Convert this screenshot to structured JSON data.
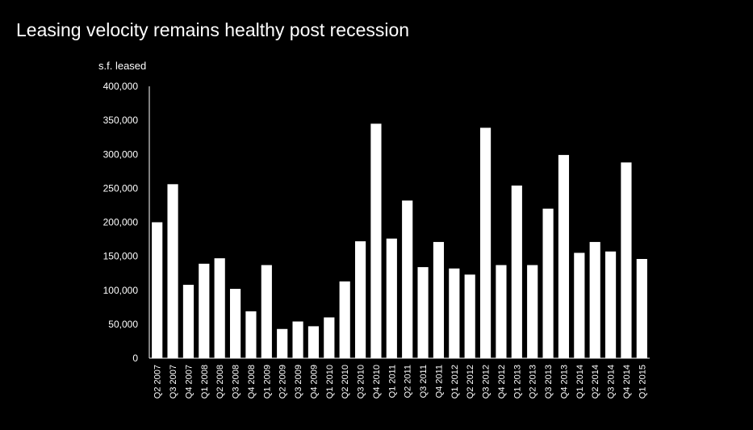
{
  "chart_data": {
    "type": "bar",
    "title": "Leasing velocity remains healthy post recession",
    "ylabel": "s.f. leased",
    "xlabel": "",
    "ylim": [
      0,
      400000
    ],
    "yticks": [
      "0",
      "50,000",
      "100,000",
      "150,000",
      "200,000",
      "250,000",
      "300,000",
      "350,000",
      "400,000"
    ],
    "ytick_values": [
      0,
      50000,
      100000,
      150000,
      200000,
      250000,
      300000,
      350000,
      400000
    ],
    "grid": false,
    "legend": "none",
    "bar_color": "#ffffff",
    "categories": [
      "Q2 2007",
      "Q3 2007",
      "Q4 2007",
      "Q1 2008",
      "Q2 2008",
      "Q3 2008",
      "Q4 2008",
      "Q1 2009",
      "Q2 2009",
      "Q3 2009",
      "Q4 2009",
      "Q1 2010",
      "Q2 2010",
      "Q3 2010",
      "Q4 2010",
      "Q1 2011",
      "Q2 2011",
      "Q3 2011",
      "Q4 2011",
      "Q1 2012",
      "Q2 2012",
      "Q3 2012",
      "Q4 2012",
      "Q1 2013",
      "Q2 2013",
      "Q3 2013",
      "Q4 2013",
      "Q1 2014",
      "Q2 2014",
      "Q3 2014",
      "Q4 2014",
      "Q1 2015"
    ],
    "values": [
      200000,
      256000,
      108000,
      139000,
      147000,
      102000,
      69000,
      137000,
      43000,
      54000,
      47000,
      60000,
      113000,
      172000,
      345000,
      176000,
      232000,
      134000,
      171000,
      132000,
      123000,
      339000,
      137000,
      254000,
      137000,
      220000,
      299000,
      155000,
      171000,
      157000,
      288000,
      146000
    ]
  }
}
